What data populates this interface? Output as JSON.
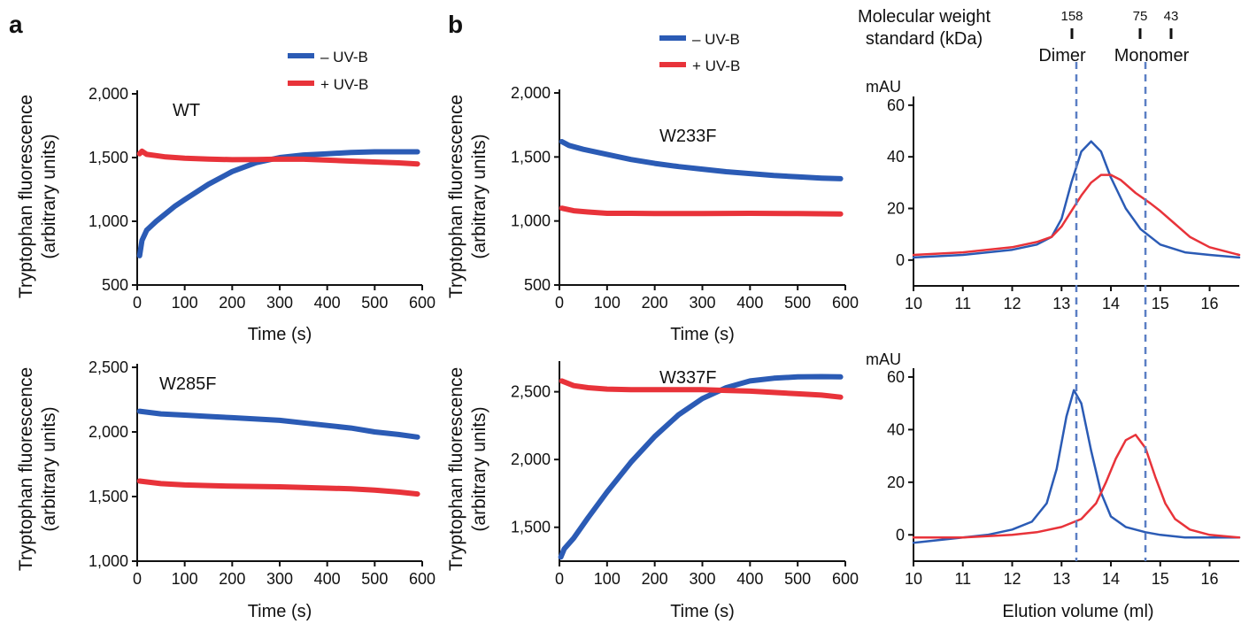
{
  "figure": {
    "panel_a_letter": "a",
    "panel_b_letter": "b",
    "ylabel_line1": "Tryptophan fluorescence",
    "ylabel_line2": "(arbitrary units)",
    "time_xlabel": "Time (s)",
    "elution_xlabel": "Elution volume (ml)",
    "mau_label": "mAU",
    "mw_title_line1": "Molecular weight",
    "mw_title_line2": "standard (kDa)",
    "mw_values": [
      "158",
      "75",
      "43"
    ],
    "dimer_label": "Dimer",
    "monomer_label": "Monomer",
    "legend_minus": "– UV-B",
    "legend_plus": "+ UV-B",
    "colors": {
      "minus_uvb": "#2b5bb5",
      "plus_uvb": "#e8333a",
      "dashed": "#5b7fc4"
    }
  },
  "chart_data": [
    {
      "id": "WT",
      "type": "line",
      "title": "WT",
      "xlabel": "Time (s)",
      "ylabel": "Tryptophan fluorescence (arbitrary units)",
      "xlim": [
        0,
        600
      ],
      "ylim": [
        500,
        2000
      ],
      "xticks": [
        0,
        100,
        200,
        300,
        400,
        500,
        600
      ],
      "yticks": [
        500,
        1000,
        1500,
        2000
      ],
      "ytick_labels": [
        "500",
        "1,000",
        "1,500",
        "2,000"
      ],
      "series": [
        {
          "name": "– UV-B",
          "color": "#2b5bb5",
          "x": [
            5,
            10,
            20,
            40,
            60,
            80,
            100,
            150,
            200,
            250,
            300,
            350,
            400,
            450,
            500,
            550,
            590
          ],
          "y": [
            730,
            850,
            930,
            1000,
            1060,
            1120,
            1170,
            1290,
            1390,
            1460,
            1500,
            1520,
            1530,
            1540,
            1545,
            1545,
            1545
          ]
        },
        {
          "name": "+ UV-B",
          "color": "#e8333a",
          "x": [
            5,
            10,
            20,
            40,
            60,
            100,
            150,
            200,
            250,
            300,
            350,
            400,
            450,
            500,
            550,
            590
          ],
          "y": [
            1530,
            1550,
            1525,
            1515,
            1505,
            1495,
            1488,
            1483,
            1485,
            1488,
            1487,
            1480,
            1472,
            1465,
            1458,
            1450
          ]
        }
      ]
    },
    {
      "id": "W285F",
      "type": "line",
      "title": "W285F",
      "xlabel": "Time (s)",
      "ylabel": "Tryptophan fluorescence (arbitrary units)",
      "xlim": [
        0,
        600
      ],
      "ylim": [
        1000,
        2500
      ],
      "xticks": [
        0,
        100,
        200,
        300,
        400,
        500,
        600
      ],
      "yticks": [
        1000,
        1500,
        2000,
        2500
      ],
      "ytick_labels": [
        "1,000",
        "1,500",
        "2,000",
        "2,500"
      ],
      "series": [
        {
          "name": "– UV-B",
          "color": "#2b5bb5",
          "x": [
            5,
            50,
            100,
            150,
            200,
            250,
            300,
            350,
            400,
            450,
            500,
            550,
            590
          ],
          "y": [
            2160,
            2140,
            2130,
            2120,
            2110,
            2100,
            2090,
            2070,
            2050,
            2030,
            2000,
            1980,
            1960
          ]
        },
        {
          "name": "+ UV-B",
          "color": "#e8333a",
          "x": [
            5,
            50,
            100,
            150,
            200,
            250,
            300,
            350,
            400,
            450,
            500,
            550,
            590
          ],
          "y": [
            1620,
            1600,
            1590,
            1585,
            1580,
            1578,
            1575,
            1570,
            1565,
            1560,
            1550,
            1535,
            1520
          ]
        }
      ]
    },
    {
      "id": "W233F",
      "type": "line",
      "title": "W233F",
      "xlabel": "Time (s)",
      "ylabel": "Tryptophan fluorescence (arbitrary units)",
      "xlim": [
        0,
        600
      ],
      "ylim": [
        500,
        2000
      ],
      "xticks": [
        0,
        100,
        200,
        300,
        400,
        500,
        600
      ],
      "yticks": [
        500,
        1000,
        1500,
        2000
      ],
      "ytick_labels": [
        "500",
        "1,000",
        "1,500",
        "2,000"
      ],
      "series": [
        {
          "name": "– UV-B",
          "color": "#2b5bb5",
          "x": [
            5,
            20,
            50,
            100,
            150,
            200,
            250,
            300,
            350,
            400,
            450,
            500,
            550,
            590
          ],
          "y": [
            1620,
            1590,
            1560,
            1520,
            1480,
            1450,
            1425,
            1405,
            1385,
            1370,
            1355,
            1345,
            1335,
            1330
          ]
        },
        {
          "name": "+ UV-B",
          "color": "#e8333a",
          "x": [
            5,
            30,
            60,
            100,
            150,
            200,
            300,
            400,
            500,
            590
          ],
          "y": [
            1100,
            1080,
            1070,
            1060,
            1060,
            1058,
            1058,
            1060,
            1058,
            1055
          ]
        }
      ]
    },
    {
      "id": "W337F",
      "type": "line",
      "title": "W337F",
      "xlabel": "Time (s)",
      "ylabel": "Tryptophan fluorescence (arbitrary units)",
      "xlim": [
        0,
        600
      ],
      "ylim": [
        1250,
        2700
      ],
      "xticks": [
        0,
        100,
        200,
        300,
        400,
        500,
        600
      ],
      "yticks": [
        1500,
        2000,
        2500
      ],
      "ytick_labels": [
        "1,500",
        "2,000",
        "2,500"
      ],
      "series": [
        {
          "name": "– UV-B",
          "color": "#2b5bb5",
          "x": [
            3,
            10,
            30,
            60,
            100,
            150,
            200,
            250,
            300,
            350,
            400,
            450,
            500,
            550,
            590
          ],
          "y": [
            1280,
            1340,
            1420,
            1570,
            1760,
            1980,
            2170,
            2330,
            2450,
            2530,
            2580,
            2600,
            2610,
            2612,
            2610
          ]
        },
        {
          "name": "+ UV-B",
          "color": "#e8333a",
          "x": [
            5,
            30,
            60,
            100,
            150,
            200,
            250,
            300,
            350,
            400,
            450,
            500,
            550,
            590
          ],
          "y": [
            2580,
            2545,
            2530,
            2520,
            2515,
            2515,
            2515,
            2515,
            2510,
            2505,
            2495,
            2485,
            2475,
            2460
          ]
        }
      ]
    },
    {
      "id": "elution-top",
      "type": "line",
      "xlabel": "",
      "ylabel": "mAU",
      "xlim": [
        10,
        16.6
      ],
      "ylim": [
        -10,
        62
      ],
      "xticks": [
        10,
        11,
        12,
        13,
        14,
        15,
        16
      ],
      "yticks": [
        0,
        20,
        40,
        60
      ],
      "series": [
        {
          "name": "– UV-B",
          "color": "#2b5bb5",
          "x": [
            10,
            11,
            12,
            12.5,
            12.8,
            13.0,
            13.2,
            13.4,
            13.6,
            13.8,
            14.0,
            14.3,
            14.6,
            15.0,
            15.5,
            16.0,
            16.6
          ],
          "y": [
            1,
            2,
            4,
            6,
            9,
            16,
            30,
            42,
            46,
            42,
            32,
            20,
            12,
            6,
            3,
            2,
            1
          ]
        },
        {
          "name": "+ UV-B",
          "color": "#e8333a",
          "x": [
            10,
            11,
            12,
            12.5,
            12.8,
            13.0,
            13.2,
            13.4,
            13.6,
            13.8,
            14.0,
            14.2,
            14.5,
            14.8,
            15.0,
            15.3,
            15.6,
            16.0,
            16.6
          ],
          "y": [
            2,
            3,
            5,
            7,
            9,
            13,
            19,
            25,
            30,
            33,
            33,
            31,
            26,
            22,
            19,
            14,
            9,
            5,
            2
          ]
        }
      ]
    },
    {
      "id": "elution-bottom",
      "type": "line",
      "xlabel": "Elution volume (ml)",
      "ylabel": "mAU",
      "xlim": [
        10,
        16.6
      ],
      "ylim": [
        -10,
        62
      ],
      "xticks": [
        10,
        11,
        12,
        13,
        14,
        15,
        16
      ],
      "yticks": [
        0,
        20,
        40,
        60
      ],
      "series": [
        {
          "name": "– UV-B",
          "color": "#2b5bb5",
          "x": [
            10,
            11,
            11.5,
            12,
            12.4,
            12.7,
            12.9,
            13.1,
            13.25,
            13.4,
            13.6,
            13.8,
            14.0,
            14.3,
            14.7,
            15.0,
            15.5,
            16.0,
            16.6
          ],
          "y": [
            -3,
            -1,
            0,
            2,
            5,
            12,
            25,
            45,
            55,
            50,
            32,
            16,
            7,
            3,
            1,
            0,
            -1,
            -1,
            -1
          ]
        },
        {
          "name": "+ UV-B",
          "color": "#e8333a",
          "x": [
            10,
            11,
            12,
            12.5,
            13.0,
            13.4,
            13.7,
            13.9,
            14.1,
            14.3,
            14.5,
            14.7,
            14.9,
            15.1,
            15.3,
            15.6,
            16.0,
            16.6
          ],
          "y": [
            -1,
            -1,
            0,
            1,
            3,
            6,
            12,
            20,
            29,
            36,
            38,
            33,
            22,
            12,
            6,
            2,
            0,
            -1
          ]
        }
      ]
    }
  ]
}
